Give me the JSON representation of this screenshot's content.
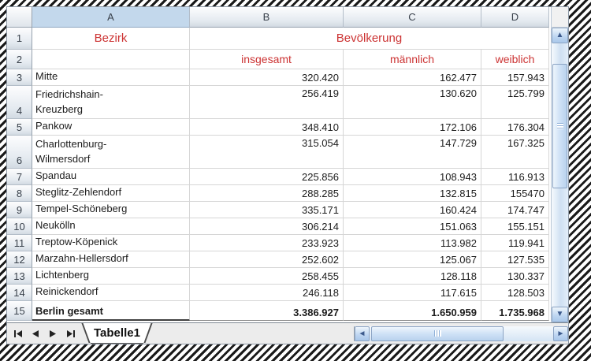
{
  "colors": {
    "heading_red": "#cc3333",
    "selected_column_header": "#c3d8ec",
    "grid_line": "#d6d6d6",
    "scrollbar_blue": "#bdd5f1",
    "marching_ants": "#1a1a1a"
  },
  "icons": {
    "scroll_up": "▲",
    "scroll_down": "▼",
    "scroll_left": "◄",
    "scroll_right": "►"
  },
  "sheet": {
    "column_headers": [
      "A",
      "B",
      "C",
      "D"
    ],
    "selected_column": "A",
    "header_row1": {
      "a": "Bezirk",
      "bcd": "Bevölkerung"
    },
    "header_row2": {
      "b": "insgesamt",
      "c": "männlich",
      "d": "weiblich"
    },
    "rows": [
      {
        "num": "3",
        "name": "Mitte",
        "insgesamt": "320.420",
        "maennlich": "162.477",
        "weiblich": "157.943"
      },
      {
        "num": "4",
        "name": "Friedrichshain-\nKreuzberg",
        "insgesamt": "256.419",
        "maennlich": "130.620",
        "weiblich": "125.799"
      },
      {
        "num": "5",
        "name": "Pankow",
        "insgesamt": "348.410",
        "maennlich": "172.106",
        "weiblich": "176.304"
      },
      {
        "num": "6",
        "name": "Charlottenburg-\nWilmersdorf",
        "insgesamt": "315.054",
        "maennlich": "147.729",
        "weiblich": "167.325"
      },
      {
        "num": "7",
        "name": "Spandau",
        "insgesamt": "225.856",
        "maennlich": "108.943",
        "weiblich": "116.913"
      },
      {
        "num": "8",
        "name": "Steglitz-Zehlendorf",
        "insgesamt": "288.285",
        "maennlich": "132.815",
        "weiblich": "155470"
      },
      {
        "num": "9",
        "name": "Tempel-Schöneberg",
        "insgesamt": "335.171",
        "maennlich": "160.424",
        "weiblich": "174.747"
      },
      {
        "num": "10",
        "name": "Neukölln",
        "insgesamt": "306.214",
        "maennlich": "151.063",
        "weiblich": "155.151"
      },
      {
        "num": "11",
        "name": "Treptow-Köpenick",
        "insgesamt": "233.923",
        "maennlich": "113.982",
        "weiblich": "119.941"
      },
      {
        "num": "12",
        "name": "Marzahn-Hellersdorf",
        "insgesamt": "252.602",
        "maennlich": "125.067",
        "weiblich": "127.535"
      },
      {
        "num": "13",
        "name": "Lichtenberg",
        "insgesamt": "258.455",
        "maennlich": "128.118",
        "weiblich": "130.337"
      },
      {
        "num": "14",
        "name": "Reinickendorf",
        "insgesamt": "246.118",
        "maennlich": "117.615",
        "weiblich": "128.503"
      },
      {
        "num": "15",
        "name": "Berlin gesamt",
        "total": true,
        "insgesamt": "3.386.927",
        "maennlich": "1.650.959",
        "weiblich": "1.735.968"
      }
    ],
    "tab_label": "Tabelle1"
  }
}
